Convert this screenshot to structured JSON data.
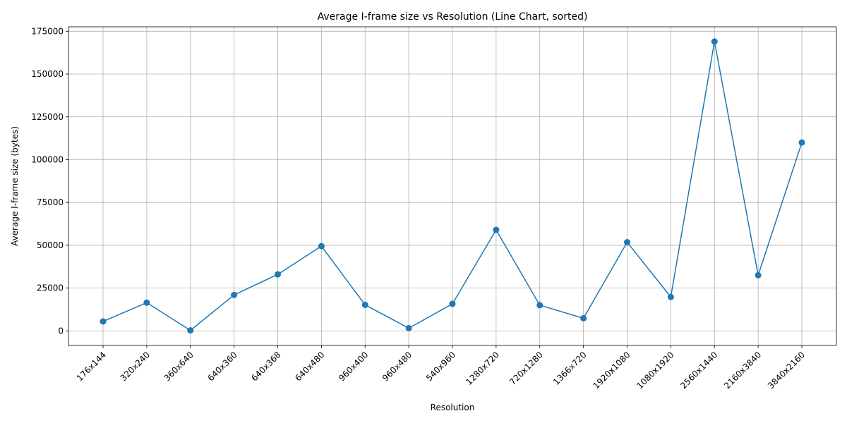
{
  "colors": {
    "line": "#1f77b4",
    "grid": "#b0b0b0",
    "background": "#ffffff"
  },
  "chart_data": {
    "type": "line",
    "title": "Average I-frame size vs Resolution (Line Chart, sorted)",
    "xlabel": "Resolution",
    "ylabel": "Average I-frame size (bytes)",
    "categories": [
      "176x144",
      "320x240",
      "360x640",
      "640x360",
      "640x368",
      "640x480",
      "960x400",
      "960x480",
      "540x960",
      "1280x720",
      "720x1280",
      "1366x720",
      "1920x1080",
      "1080x1920",
      "2560x1440",
      "2160x3840",
      "3840x2160"
    ],
    "values": [
      5500,
      16500,
      300,
      21000,
      33000,
      49500,
      15200,
      1600,
      15800,
      59000,
      15000,
      7400,
      51800,
      19800,
      169000,
      32500,
      110000
    ],
    "yticks": [
      0,
      25000,
      50000,
      75000,
      100000,
      125000,
      150000,
      175000
    ],
    "ylim": [
      -8500,
      177600
    ],
    "grid": true,
    "marker": "circle"
  }
}
